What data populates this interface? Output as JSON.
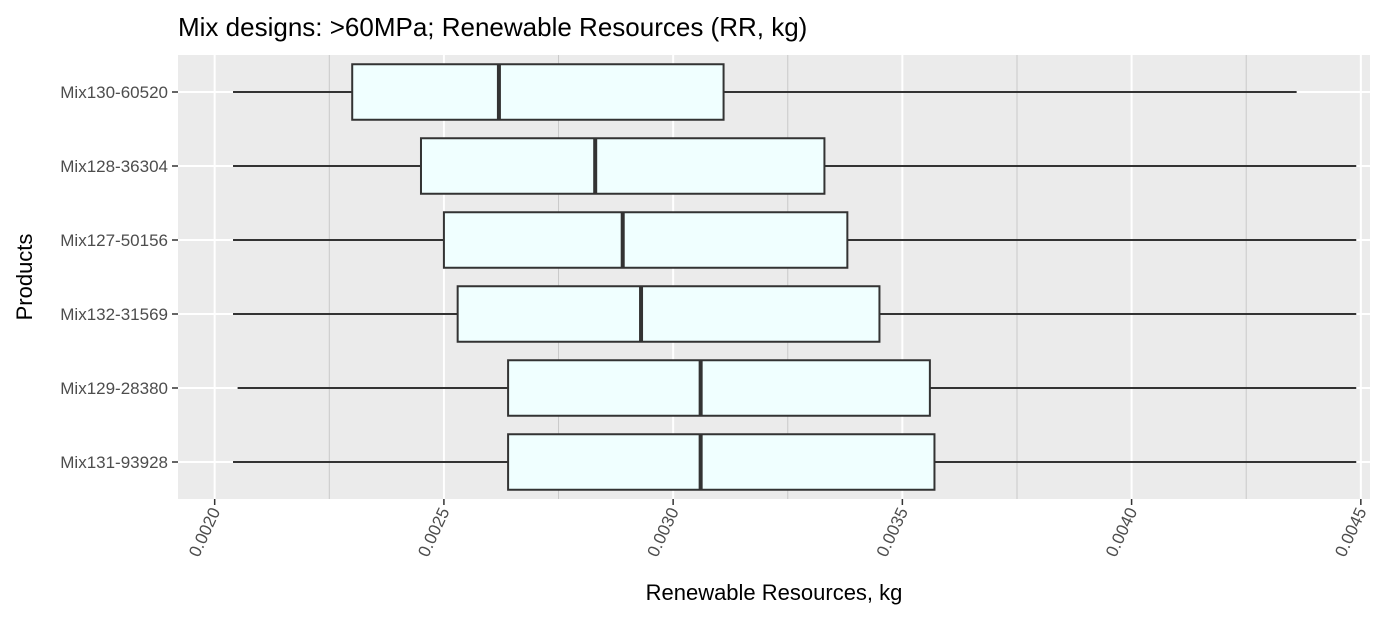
{
  "chart_data": {
    "type": "boxplot",
    "orientation": "horizontal",
    "title": "Mix designs: >60MPa; Renewable Resources (RR, kg)",
    "xlabel": "Renewable Resources, kg",
    "ylabel": "Products",
    "xlim": [
      0.00192,
      0.00452
    ],
    "xticks": [
      0.002,
      0.0025,
      0.003,
      0.0035,
      0.004,
      0.0045
    ],
    "xtick_labels": [
      "0.0020",
      "0.0025",
      "0.0030",
      "0.0035",
      "0.0040",
      "0.0045"
    ],
    "grid": true,
    "colors": {
      "panel": "#ebebeb",
      "grid_major": "#ffffff",
      "grid_minor": "#c9c9c9",
      "box_fill": "#f0ffff",
      "box_stroke": "#333333"
    },
    "categories": [
      "Mix130-60520",
      "Mix128-36304",
      "Mix127-50156",
      "Mix132-31569",
      "Mix129-28380",
      "Mix131-93928"
    ],
    "boxes": [
      {
        "name": "Mix130-60520",
        "min": 0.00204,
        "q1": 0.0023,
        "median": 0.00262,
        "q3": 0.00311,
        "max": 0.00436
      },
      {
        "name": "Mix128-36304",
        "min": 0.00204,
        "q1": 0.00245,
        "median": 0.00283,
        "q3": 0.00333,
        "max": 0.00449
      },
      {
        "name": "Mix127-50156",
        "min": 0.00204,
        "q1": 0.0025,
        "median": 0.00289,
        "q3": 0.00338,
        "max": 0.00449
      },
      {
        "name": "Mix132-31569",
        "min": 0.00204,
        "q1": 0.00253,
        "median": 0.00293,
        "q3": 0.00345,
        "max": 0.00449
      },
      {
        "name": "Mix129-28380",
        "min": 0.00205,
        "q1": 0.00264,
        "median": 0.00306,
        "q3": 0.00356,
        "max": 0.00449
      },
      {
        "name": "Mix131-93928",
        "min": 0.00204,
        "q1": 0.00264,
        "median": 0.00306,
        "q3": 0.00357,
        "max": 0.00449
      }
    ]
  }
}
